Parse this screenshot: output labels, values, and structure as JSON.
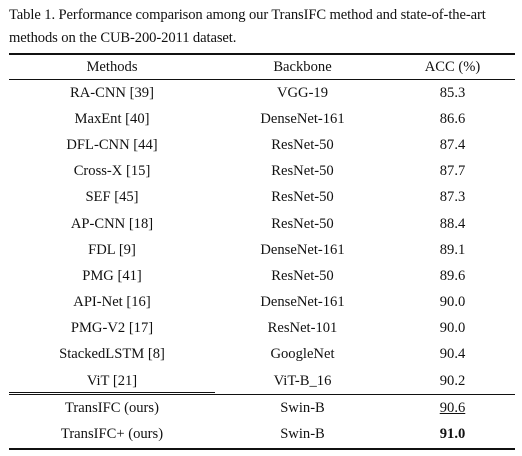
{
  "caption": "Table 1. Performance comparison among our TransIFC method and state-of-the-art methods on the CUB-200-2011 dataset.",
  "table": {
    "headers": [
      "Methods",
      "Backbone",
      "ACC (%)"
    ],
    "rows": [
      {
        "method": "RA-CNN [39]",
        "backbone": "VGG-19",
        "acc": "85.3"
      },
      {
        "method": "MaxEnt [40]",
        "backbone": "DenseNet-161",
        "acc": "86.6"
      },
      {
        "method": "DFL-CNN [44]",
        "backbone": "ResNet-50",
        "acc": "87.4"
      },
      {
        "method": "Cross-X [15]",
        "backbone": "ResNet-50",
        "acc": "87.7"
      },
      {
        "method": "SEF [45]",
        "backbone": "ResNet-50",
        "acc": "87.3"
      },
      {
        "method": "AP-CNN [18]",
        "backbone": "ResNet-50",
        "acc": "88.4"
      },
      {
        "method": "FDL [9]",
        "backbone": "DenseNet-161",
        "acc": "89.1"
      },
      {
        "method": "PMG [41]",
        "backbone": "ResNet-50",
        "acc": "89.6"
      },
      {
        "method": "API-Net [16]",
        "backbone": "DenseNet-161",
        "acc": "90.0"
      },
      {
        "method": "PMG-V2 [17]",
        "backbone": "ResNet-101",
        "acc": "90.0"
      },
      {
        "method": "StackedLSTM [8]",
        "backbone": "GoogleNet",
        "acc": "90.4"
      },
      {
        "method": "ViT [21]",
        "backbone": "ViT-B_16",
        "acc": "90.2"
      }
    ],
    "ours": [
      {
        "method": "TransIFC (ours)",
        "backbone": "Swin-B",
        "acc": "90.6",
        "emphasis": "underline"
      },
      {
        "method": "TransIFC+ (ours)",
        "backbone": "Swin-B",
        "acc": "91.0",
        "emphasis": "bold"
      }
    ]
  }
}
